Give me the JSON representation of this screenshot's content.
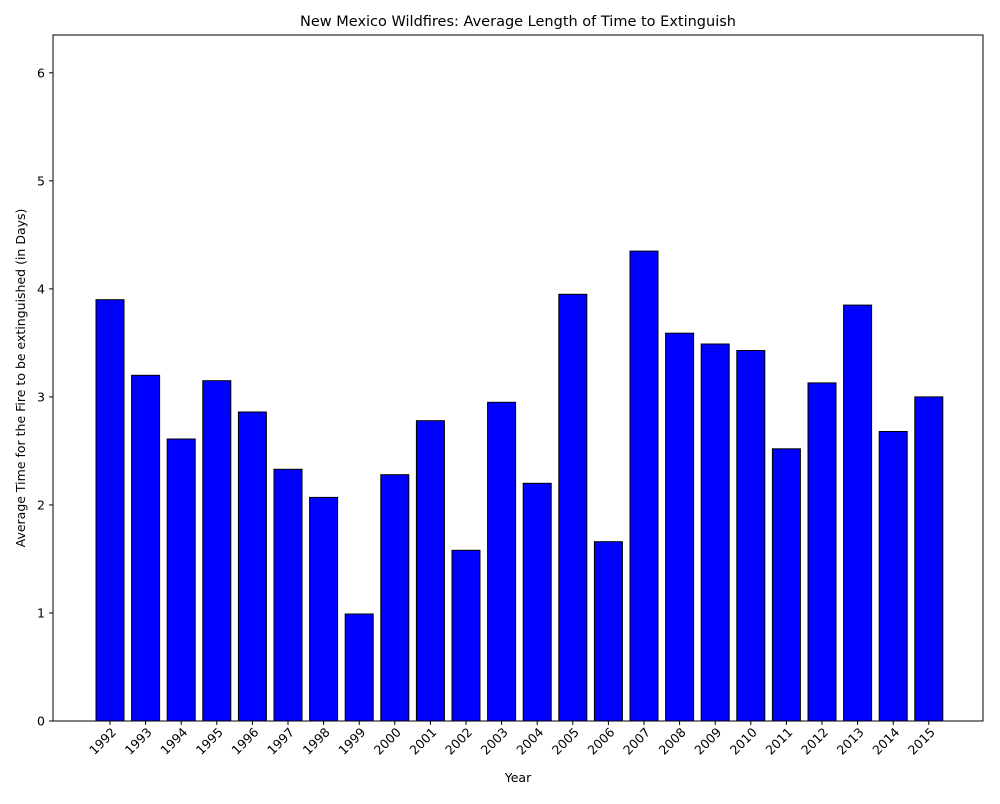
{
  "chart_data": {
    "type": "bar",
    "title": "New Mexico Wildfires: Average Length of Time to Extinguish",
    "xlabel": "Year",
    "ylabel": "Average Time for the Fire to be extinguished (in Days)",
    "categories": [
      "1992",
      "1993",
      "1994",
      "1995",
      "1996",
      "1997",
      "1998",
      "1999",
      "2000",
      "2001",
      "2002",
      "2003",
      "2004",
      "2005",
      "2006",
      "2007",
      "2008",
      "2009",
      "2010",
      "2011",
      "2012",
      "2013",
      "2014",
      "2015"
    ],
    "values": [
      3.9,
      3.2,
      2.61,
      3.15,
      2.86,
      2.33,
      2.07,
      0.99,
      2.28,
      2.78,
      1.58,
      2.95,
      2.2,
      3.95,
      1.66,
      4.35,
      3.59,
      3.49,
      3.43,
      2.52,
      3.13,
      3.85,
      2.68,
      3.0
    ],
    "ylim": [
      0,
      6.35
    ],
    "yticks": [
      "0",
      "1",
      "2",
      "3",
      "4",
      "5",
      "6"
    ],
    "bar_color": "#0000ff",
    "edge_color": "#000000",
    "grid": false,
    "legend": false
  }
}
